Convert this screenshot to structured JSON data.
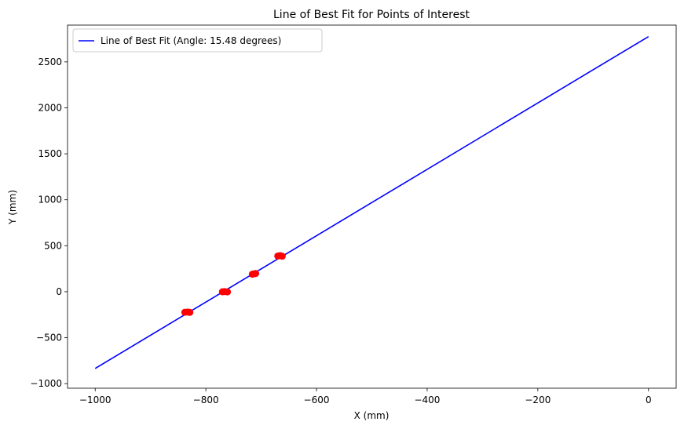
{
  "chart_data": {
    "type": "line",
    "title": "Line of Best Fit for Points of Interest",
    "xlabel": "X (mm)",
    "ylabel": "Y (mm)",
    "xlim": [
      -1050,
      50
    ],
    "ylim": [
      -1050,
      2900
    ],
    "x_ticks": [
      -1000,
      -800,
      -600,
      -400,
      -200,
      0
    ],
    "y_ticks": [
      -1000,
      -500,
      0,
      500,
      1000,
      1500,
      2000,
      2500
    ],
    "grid": false,
    "legend_position": "top-left",
    "series": [
      {
        "name": "Line of Best Fit (Angle: 15.48 degrees)",
        "type": "line",
        "color": "#0000ff",
        "x": [
          -1000,
          0
        ],
        "y": [
          -835,
          2775
        ]
      },
      {
        "type": "scatter",
        "color": "#ff0000",
        "x": [
          -838,
          -833,
          -829,
          -770,
          -766,
          -761,
          -716,
          -713,
          -710,
          -670,
          -666,
          -662
        ],
        "y": [
          -224,
          -221,
          -225,
          -1,
          2,
          -2,
          190,
          195,
          198,
          388,
          393,
          386
        ]
      }
    ]
  }
}
